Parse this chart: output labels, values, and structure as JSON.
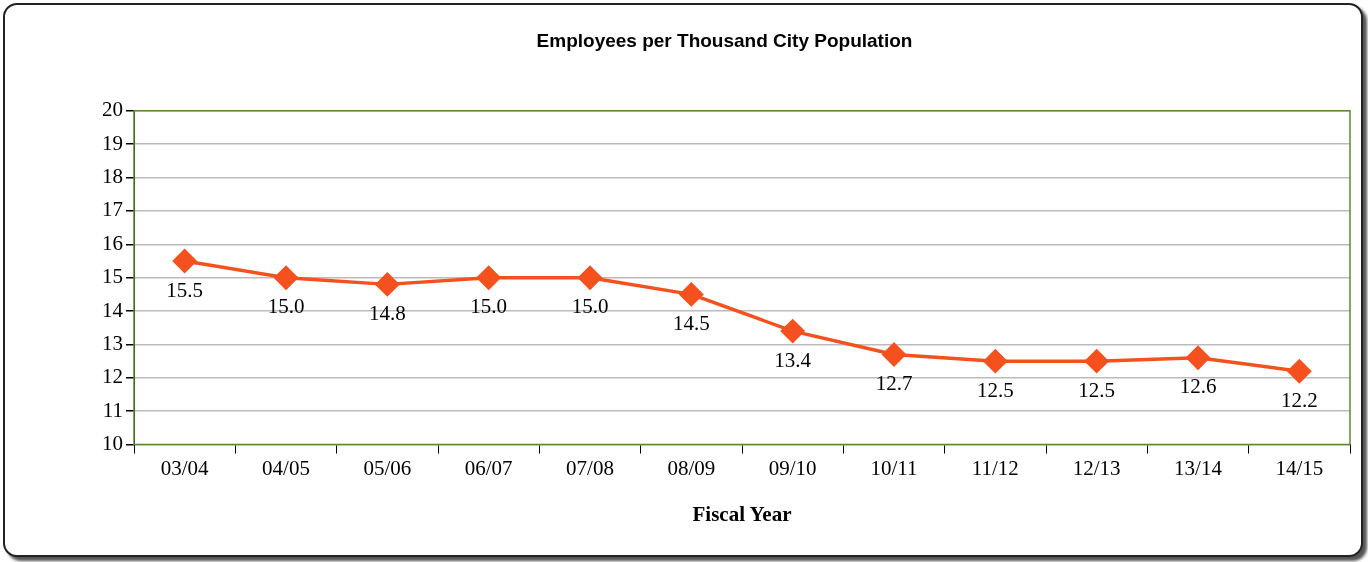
{
  "chart_data": {
    "type": "line",
    "title": "Employees per Thousand City Population",
    "xlabel": "Fiscal Year",
    "categories": [
      "03/04",
      "04/05",
      "05/06",
      "06/07",
      "07/08",
      "08/09",
      "09/10",
      "10/11",
      "11/12",
      "12/13",
      "13/14",
      "14/15"
    ],
    "series": [
      {
        "color": "#f4511e",
        "values": [
          15.5,
          15.0,
          14.8,
          15.0,
          15.0,
          14.5,
          13.4,
          12.7,
          12.5,
          12.5,
          12.6,
          12.2
        ],
        "value_labels": [
          "15.5",
          "15.0",
          "14.8",
          "15.0",
          "15.0",
          "14.5",
          "13.4",
          "12.7",
          "12.5",
          "12.5",
          "12.6",
          "12.2"
        ]
      }
    ],
    "ylim": [
      10,
      20
    ],
    "yticks": [
      10,
      11,
      12,
      13,
      14,
      15,
      16,
      17,
      18,
      19,
      20
    ],
    "grid": "y",
    "legend": false,
    "marker": "diamond",
    "line_style": "solid"
  }
}
